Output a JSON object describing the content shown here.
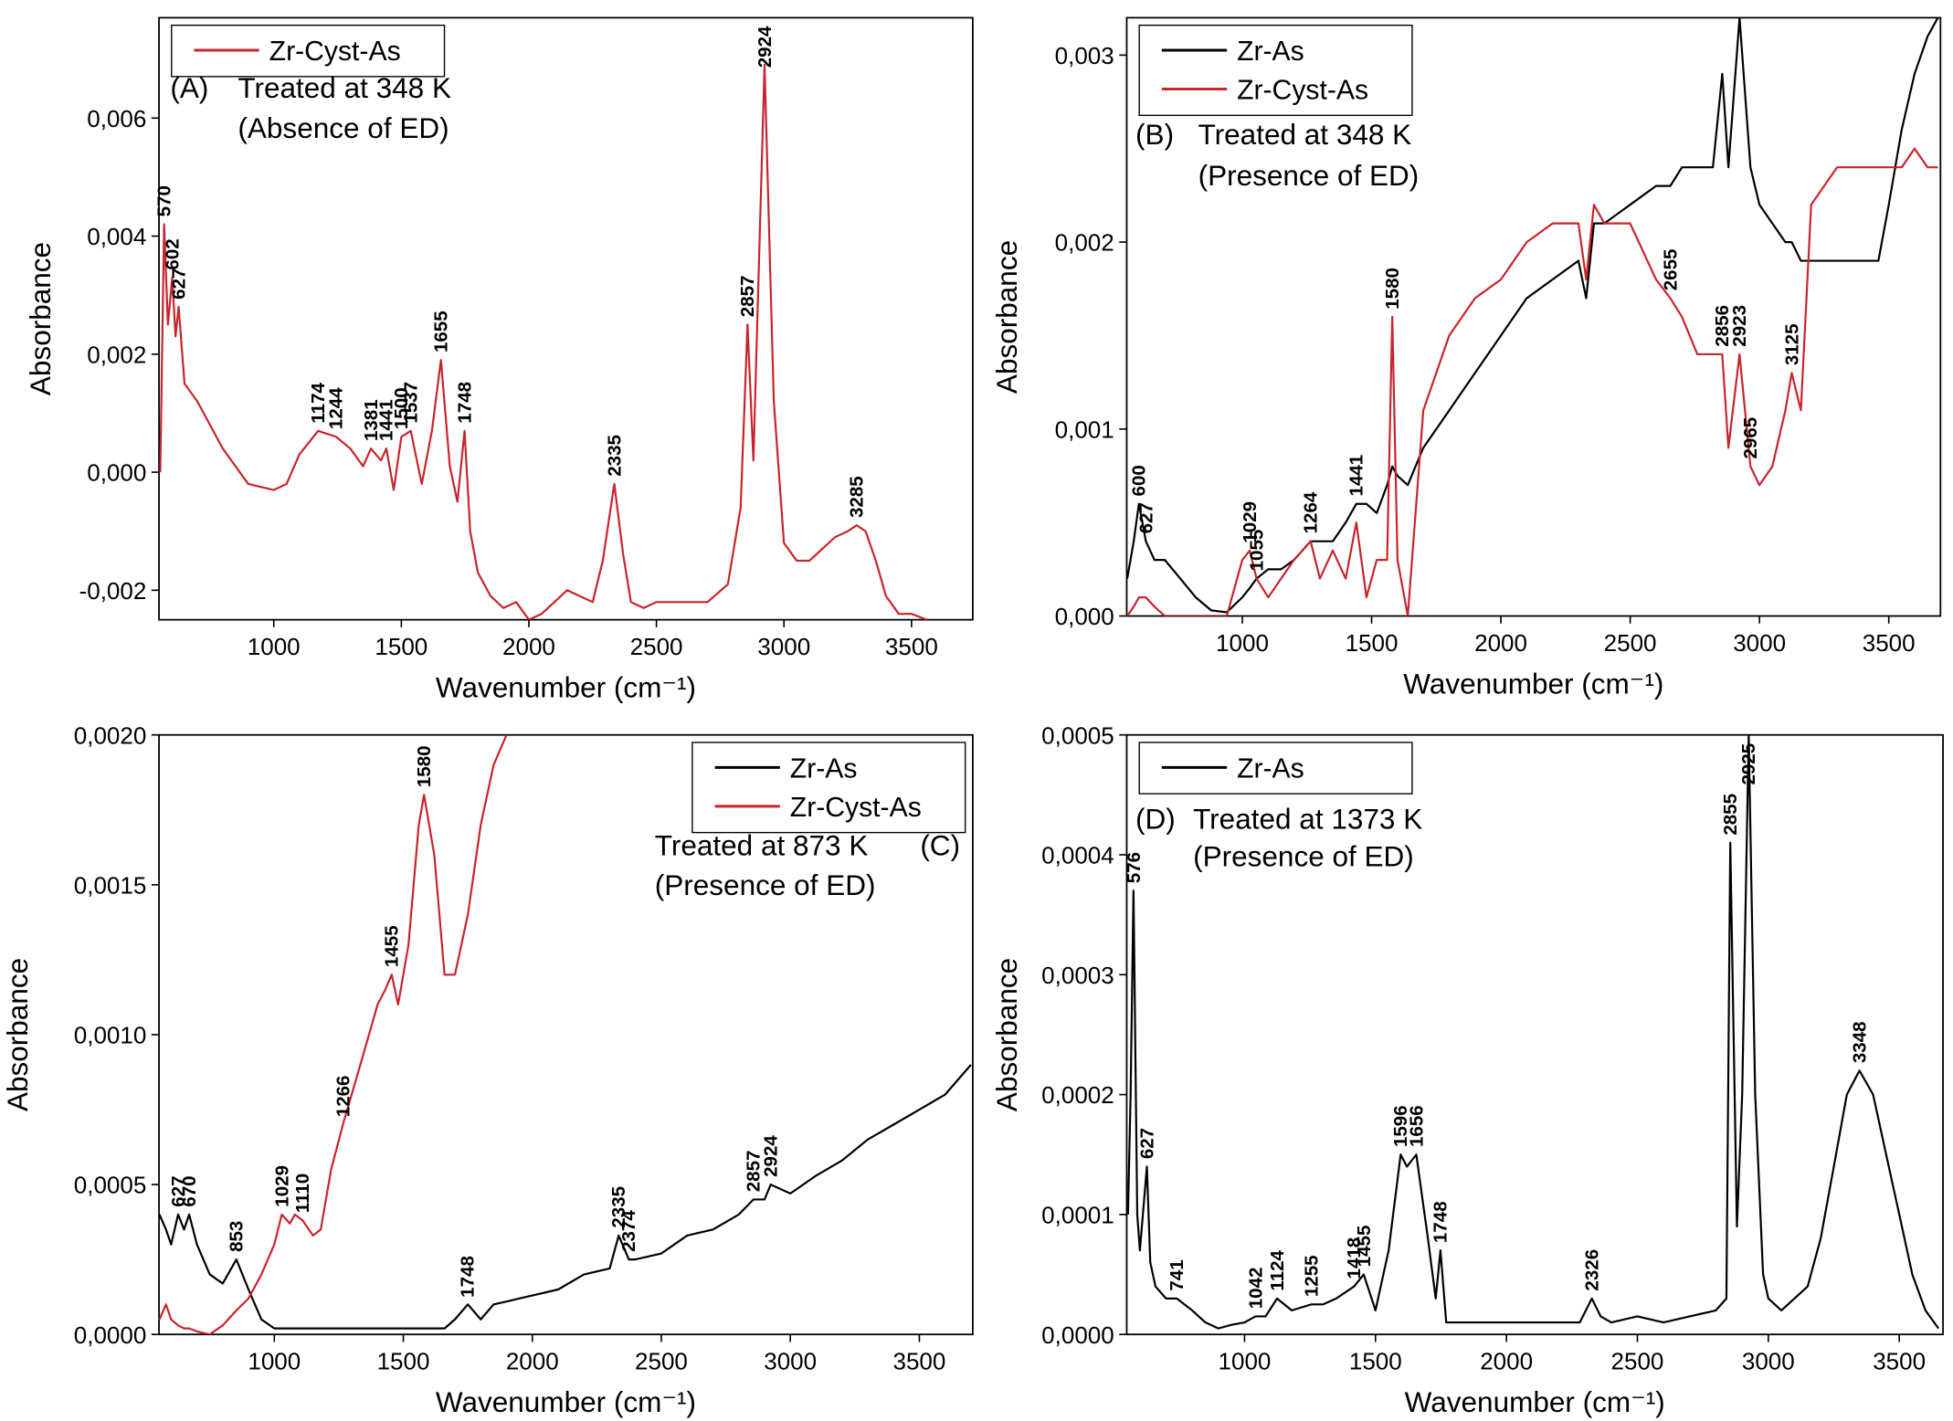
{
  "chart_data": [
    {
      "type": "line",
      "xlim": [
        550,
        3740
      ],
      "ylim": [
        -0.0025,
        0.0077
      ],
      "xticks": [
        1000,
        1500,
        2000,
        2500,
        3000,
        3500
      ],
      "yticks": [
        {
          "value": -0.002,
          "label": "-0,002"
        },
        {
          "value": 0,
          "label": "0,000"
        },
        {
          "value": 0.002,
          "label": "0,002"
        },
        {
          "value": 0.004,
          "label": "0,004"
        },
        {
          "value": 0.006,
          "label": "0,006"
        }
      ],
      "xlabel": "Wavenumber (cm⁻¹)",
      "ylabel": "Absorbance",
      "legend": "upper left",
      "notes": [
        "(A)",
        "Treated at 348 K",
        "(Absence of ED)"
      ],
      "x": [
        555,
        570,
        585,
        602,
        615,
        627,
        650,
        700,
        800,
        900,
        1000,
        1050,
        1100,
        1174,
        1244,
        1300,
        1350,
        1381,
        1420,
        1441,
        1470,
        1500,
        1537,
        1580,
        1620,
        1655,
        1690,
        1720,
        1748,
        1770,
        1800,
        1850,
        1900,
        1950,
        2000,
        2050,
        2100,
        2150,
        2200,
        2250,
        2290,
        2335,
        2370,
        2400,
        2450,
        2500,
        2600,
        2700,
        2780,
        2830,
        2857,
        2880,
        2924,
        2960,
        3000,
        3050,
        3100,
        3150,
        3200,
        3250,
        3285,
        3320,
        3360,
        3400,
        3450,
        3500,
        3560
      ],
      "series": [
        {
          "name": "Zr-Cyst-As",
          "color": "#c8242b",
          "values": [
            0.0,
            0.0042,
            0.0025,
            0.0033,
            0.0023,
            0.0028,
            0.0015,
            0.0012,
            0.0004,
            -0.0002,
            -0.0003,
            -0.0002,
            0.0003,
            0.0007,
            0.0006,
            0.0004,
            0.0001,
            0.0004,
            0.0002,
            0.0004,
            -0.0003,
            0.0006,
            0.0007,
            -0.0002,
            0.0007,
            0.0019,
            0.0001,
            -0.0005,
            0.0007,
            -0.001,
            -0.0017,
            -0.0021,
            -0.0023,
            -0.0022,
            -0.0025,
            -0.0024,
            -0.0022,
            -0.002,
            -0.0021,
            -0.0022,
            -0.0015,
            -0.0002,
            -0.0014,
            -0.0022,
            -0.0023,
            -0.0022,
            -0.0022,
            -0.0022,
            -0.0019,
            -0.0006,
            0.0025,
            0.0002,
            0.0069,
            0.0012,
            -0.0012,
            -0.0015,
            -0.0015,
            -0.0013,
            -0.0011,
            -0.001,
            -0.0009,
            -0.001,
            -0.0015,
            -0.0021,
            -0.0024,
            -0.0024,
            -0.0025
          ],
          "peaks": [
            570,
            602,
            627,
            1174,
            1244,
            1381,
            1441,
            1500,
            1537,
            1655,
            1748,
            2335,
            2857,
            2924,
            3285
          ]
        }
      ]
    },
    {
      "type": "line",
      "xlim": [
        553,
        3700
      ],
      "ylim": [
        0,
        0.0032
      ],
      "xticks": [
        1000,
        1500,
        2000,
        2500,
        3000,
        3500
      ],
      "yticks": [
        {
          "value": 0,
          "label": "0,000"
        },
        {
          "value": 0.001,
          "label": "0,001"
        },
        {
          "value": 0.002,
          "label": "0,002"
        },
        {
          "value": 0.003,
          "label": "0,003"
        }
      ],
      "xlabel": "Wavenumber (cm⁻¹)",
      "ylabel": "Absorbance",
      "legend": "upper left",
      "notes": [
        "(B)",
        "Treated at 348 K",
        "(Presence of ED)"
      ],
      "x": [
        555,
        580,
        600,
        627,
        660,
        700,
        760,
        820,
        880,
        940,
        1000,
        1029,
        1055,
        1100,
        1150,
        1200,
        1264,
        1300,
        1350,
        1400,
        1441,
        1480,
        1520,
        1560,
        1580,
        1600,
        1640,
        1700,
        1800,
        1900,
        2000,
        2100,
        2200,
        2300,
        2330,
        2360,
        2400,
        2500,
        2600,
        2655,
        2700,
        2760,
        2820,
        2856,
        2880,
        2923,
        2965,
        3000,
        3050,
        3100,
        3125,
        3160,
        3200,
        3300,
        3400,
        3460,
        3500,
        3550,
        3600,
        3650,
        3690
      ],
      "series": [
        {
          "name": "Zr-As",
          "color": "#000000",
          "values": [
            0.0002,
            0.0004,
            0.0006,
            0.0004,
            0.0003,
            0.0003,
            0.0002,
            0.0001,
            3e-05,
            2e-05,
            0.0001,
            0.00015,
            0.0002,
            0.00025,
            0.00025,
            0.0003,
            0.0004,
            0.0004,
            0.0004,
            0.0005,
            0.0006,
            0.0006,
            0.00055,
            0.0007,
            0.0008,
            0.00075,
            0.0007,
            0.0009,
            0.0011,
            0.0013,
            0.0015,
            0.0017,
            0.0018,
            0.0019,
            0.0017,
            0.0021,
            0.0021,
            0.0022,
            0.0023,
            0.0023,
            0.0024,
            0.0024,
            0.0024,
            0.0029,
            0.0024,
            0.0032,
            0.0024,
            0.0022,
            0.0021,
            0.002,
            0.002,
            0.0019,
            0.0019,
            0.0019,
            0.0019,
            0.0019,
            0.0022,
            0.0026,
            0.0029,
            0.0031,
            0.0032
          ],
          "peaks": [
            600,
            627,
            1264,
            1441
          ]
        },
        {
          "name": "Zr-Cyst-As",
          "color": "#c8242b",
          "values": [
            0.0,
            5e-05,
            0.0001,
            0.0001,
            5e-05,
            0.0,
            0.0,
            0.0,
            0.0,
            0.0,
            0.0003,
            0.00035,
            0.0002,
            0.0001,
            0.0002,
            0.0003,
            0.0004,
            0.0002,
            0.00035,
            0.0002,
            0.0005,
            0.0001,
            0.0003,
            0.0003,
            0.0016,
            0.0003,
            0.0,
            0.0011,
            0.0015,
            0.0017,
            0.0018,
            0.002,
            0.0021,
            0.0021,
            0.0018,
            0.0022,
            0.0021,
            0.0021,
            0.0018,
            0.0017,
            0.0016,
            0.0014,
            0.0014,
            0.0014,
            0.0009,
            0.0014,
            0.0008,
            0.0007,
            0.0008,
            0.0011,
            0.0013,
            0.0011,
            0.0022,
            0.0024,
            0.0024,
            0.0024,
            0.0024,
            0.0024,
            0.0025,
            0.0024,
            0.0024
          ],
          "peaks": [
            1029,
            1055,
            1580,
            2655,
            2856,
            2923,
            2965,
            3125
          ]
        }
      ]
    },
    {
      "type": "line",
      "xlim": [
        553,
        3707
      ],
      "ylim": [
        0,
        0.002
      ],
      "xticks": [
        1000,
        1500,
        2000,
        2500,
        3000,
        3500
      ],
      "yticks": [
        {
          "value": 0,
          "label": "0,0000"
        },
        {
          "value": 0.0005,
          "label": "0,0005"
        },
        {
          "value": 0.001,
          "label": "0,0010"
        },
        {
          "value": 0.0015,
          "label": "0,0015"
        },
        {
          "value": 0.002,
          "label": "0,0020"
        }
      ],
      "xlabel": "Wavenumber (cm⁻¹)",
      "ylabel": "Absorbance",
      "legend": "upper right",
      "notes": [
        "Treated at 873 K",
        "(C)",
        "(Presence of ED)"
      ],
      "x": [
        555,
        580,
        600,
        627,
        650,
        670,
        700,
        750,
        800,
        853,
        900,
        950,
        1000,
        1029,
        1060,
        1080,
        1110,
        1150,
        1180,
        1220,
        1266,
        1300,
        1350,
        1400,
        1430,
        1455,
        1480,
        1520,
        1560,
        1580,
        1620,
        1660,
        1700,
        1750,
        1800,
        1850,
        1900,
        1950,
        2000,
        2100,
        2200,
        2300,
        2335,
        2374,
        2400,
        2500,
        2600,
        2700,
        2800,
        2857,
        2900,
        2924,
        3000,
        3100,
        3200,
        3300,
        3400,
        3500,
        3600,
        3700
      ],
      "series": [
        {
          "name": "Zr-As",
          "color": "#000000",
          "values": [
            0.0004,
            0.00035,
            0.0003,
            0.0004,
            0.00035,
            0.0004,
            0.0003,
            0.0002,
            0.00017,
            0.00025,
            0.00015,
            5e-05,
            2e-05,
            2e-05,
            2e-05,
            2e-05,
            2e-05,
            2e-05,
            2e-05,
            2e-05,
            2e-05,
            2e-05,
            2e-05,
            2e-05,
            2e-05,
            2e-05,
            2e-05,
            2e-05,
            2e-05,
            2e-05,
            2e-05,
            2e-05,
            5e-05,
            0.0001,
            5e-05,
            0.0001,
            0.00011,
            0.00012,
            0.00013,
            0.00015,
            0.0002,
            0.00022,
            0.00033,
            0.00025,
            0.00025,
            0.00027,
            0.00033,
            0.00035,
            0.0004,
            0.00045,
            0.00045,
            0.0005,
            0.00047,
            0.00053,
            0.00058,
            0.00065,
            0.0007,
            0.00075,
            0.0008,
            0.0009
          ],
          "peaks": [
            627,
            670,
            853,
            1748,
            2335,
            2374,
            2857,
            2924
          ]
        },
        {
          "name": "Zr-Cyst-As",
          "color": "#c8242b",
          "values": [
            5e-05,
            0.0001,
            5e-05,
            3e-05,
            2e-05,
            2e-05,
            1e-05,
            0.0,
            3e-05,
            8e-05,
            0.00012,
            0.0002,
            0.0003,
            0.0004,
            0.00037,
            0.0004,
            0.00038,
            0.00033,
            0.00035,
            0.00055,
            0.0007,
            0.0008,
            0.00095,
            0.0011,
            0.00115,
            0.0012,
            0.0011,
            0.0013,
            0.0017,
            0.0018,
            0.0016,
            0.0012,
            0.0012,
            0.0014,
            0.0017,
            0.0019,
            0.002,
            null,
            null,
            null,
            null,
            null,
            null,
            null,
            null,
            null,
            null,
            null,
            null,
            null,
            null,
            null,
            null,
            null,
            null,
            null,
            null,
            null,
            null,
            null
          ],
          "peaks": [
            1029,
            1110,
            1266,
            1455,
            1580
          ]
        }
      ]
    },
    {
      "type": "line",
      "xlim": [
        550,
        3667
      ],
      "ylim": [
        0,
        0.0005
      ],
      "xticks": [
        1000,
        1500,
        2000,
        2500,
        3000,
        3500
      ],
      "yticks": [
        {
          "value": 0,
          "label": "0,0000"
        },
        {
          "value": 0.0001,
          "label": "0,0001"
        },
        {
          "value": 0.0002,
          "label": "0,0002"
        },
        {
          "value": 0.0003,
          "label": "0,0003"
        },
        {
          "value": 0.0004,
          "label": "0,0004"
        },
        {
          "value": 0.0005,
          "label": "0,0005"
        }
      ],
      "xlabel": "Wavenumber (cm⁻¹)",
      "ylabel": "Absorbance",
      "legend": "upper left",
      "notes": [
        "(D)",
        "Treated at 1373 K",
        "(Presence of ED)"
      ],
      "x": [
        555,
        565,
        576,
        590,
        600,
        627,
        640,
        660,
        700,
        741,
        800,
        850,
        900,
        950,
        1000,
        1042,
        1080,
        1124,
        1180,
        1255,
        1300,
        1350,
        1418,
        1455,
        1500,
        1550,
        1596,
        1620,
        1656,
        1700,
        1730,
        1748,
        1770,
        1800,
        1900,
        2000,
        2100,
        2200,
        2280,
        2326,
        2360,
        2400,
        2500,
        2600,
        2700,
        2800,
        2840,
        2855,
        2880,
        2900,
        2925,
        2950,
        2980,
        3000,
        3050,
        3100,
        3150,
        3200,
        3250,
        3300,
        3348,
        3400,
        3450,
        3500,
        3550,
        3600,
        3650
      ],
      "series": [
        {
          "name": "Zr-As",
          "color": "#000000",
          "values": [
            0.0001,
            0.0002,
            0.00037,
            0.0001,
            7e-05,
            0.00014,
            6e-05,
            4e-05,
            3e-05,
            3e-05,
            2e-05,
            1e-05,
            5e-06,
            8e-06,
            1e-05,
            1.5e-05,
            1.5e-05,
            3e-05,
            2e-05,
            2.5e-05,
            2.5e-05,
            3e-05,
            4e-05,
            5e-05,
            2e-05,
            7e-05,
            0.00015,
            0.00014,
            0.00015,
            8e-05,
            3e-05,
            7e-05,
            1e-05,
            1e-05,
            1e-05,
            1e-05,
            1e-05,
            1e-05,
            1e-05,
            3e-05,
            1.5e-05,
            1e-05,
            1.5e-05,
            1e-05,
            1.5e-05,
            2e-05,
            3e-05,
            0.00041,
            9e-05,
            0.0002,
            0.0005,
            0.0002,
            5e-05,
            3e-05,
            2e-05,
            3e-05,
            4e-05,
            8e-05,
            0.00014,
            0.0002,
            0.00022,
            0.0002,
            0.00015,
            0.0001,
            5e-05,
            2e-05,
            5e-06
          ],
          "peaks": [
            576,
            627,
            741,
            1042,
            1124,
            1255,
            1418,
            1455,
            1596,
            1656,
            1748,
            2326,
            2855,
            2925,
            3348
          ]
        }
      ]
    }
  ]
}
